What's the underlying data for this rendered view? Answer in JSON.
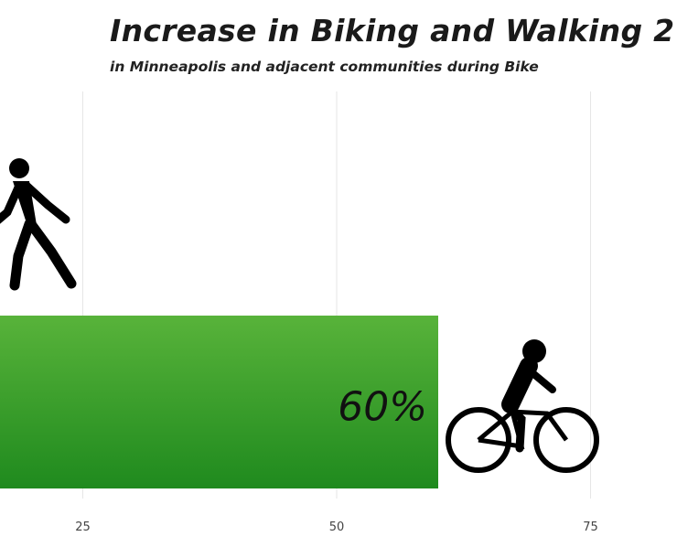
{
  "title": "Increase in Biking and Walking 2",
  "subtitle": "in Minneapolis and adjacent communities during Bike",
  "colors": {
    "bar_top": "#58b33a",
    "bar_bottom": "#1f8a1e",
    "grid": "#e6e6e6",
    "icon": "#000000"
  },
  "icons": [
    "pedestrian-icon",
    "cyclist-icon"
  ],
  "chart_data": {
    "type": "bar",
    "orientation": "horizontal",
    "categories": [
      "Biking"
    ],
    "values": [
      60
    ],
    "data_labels": [
      "60%"
    ],
    "x_ticks": [
      25,
      50,
      75
    ],
    "x_tick_labels": [
      "25",
      "50",
      "75"
    ],
    "grid": true
  }
}
